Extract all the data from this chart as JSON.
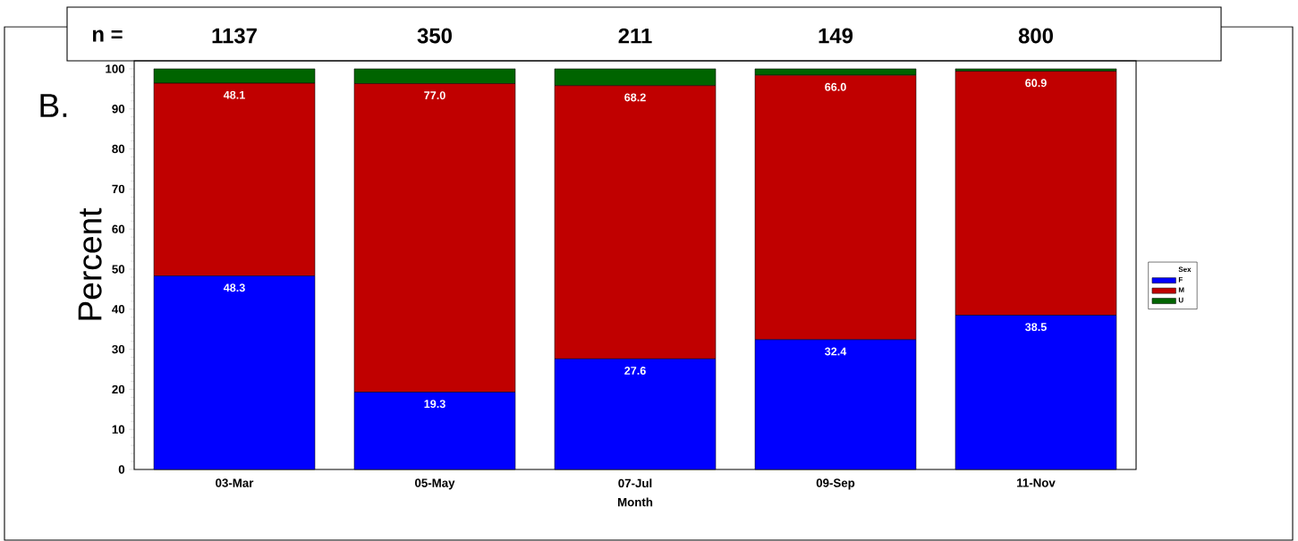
{
  "chart_data": {
    "type": "bar",
    "stacked": true,
    "xlabel": "Month",
    "ylabel": "Percent",
    "legend_title": "Sex",
    "legend": "right",
    "categories": [
      "03-Mar",
      "05-May",
      "07-Jul",
      "09-Sep",
      "11-Nov"
    ],
    "series": [
      {
        "name": "F",
        "color": "#0000ff",
        "values": [
          48.3,
          19.3,
          27.6,
          32.4,
          38.5
        ],
        "value_labels": [
          "48.3",
          "19.3",
          "27.6",
          "32.4",
          "38.5"
        ]
      },
      {
        "name": "M",
        "color": "#c00000",
        "values": [
          48.1,
          77.0,
          68.2,
          66.0,
          60.9
        ],
        "value_labels": [
          "48.1",
          "77.0",
          "68.2",
          "66.0",
          "60.9"
        ]
      },
      {
        "name": "U",
        "color": "#006400",
        "values": [
          3.6,
          3.7,
          4.2,
          1.6,
          0.6
        ]
      }
    ],
    "ylim": [
      0,
      102
    ],
    "yticks": [
      0,
      10,
      20,
      30,
      40,
      50,
      60,
      70,
      80,
      90,
      100
    ],
    "annotations": [
      "B.",
      "n =",
      "1137",
      "350",
      "211",
      "149",
      "800"
    ]
  }
}
